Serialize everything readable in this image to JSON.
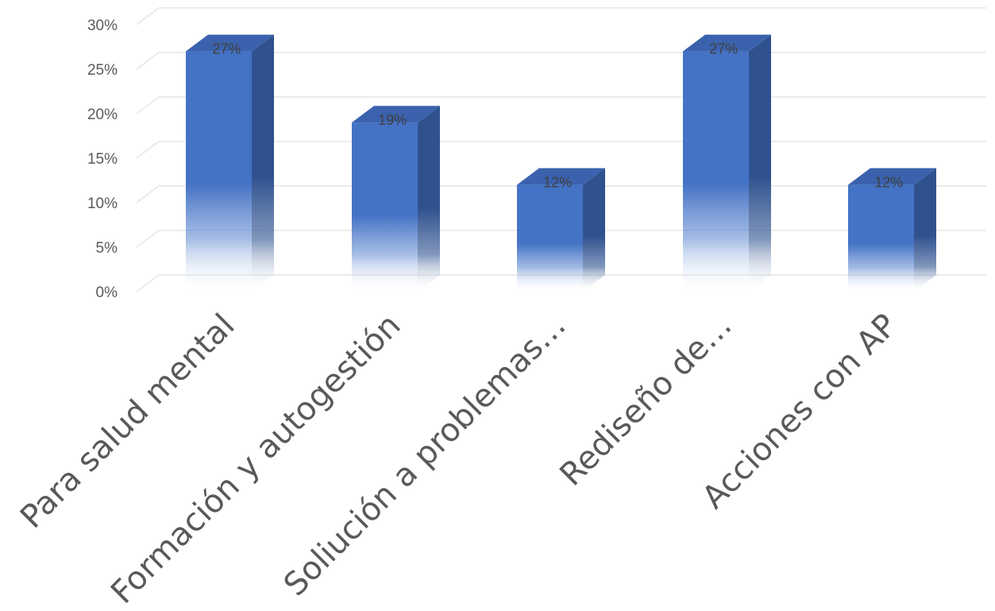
{
  "chart_data": {
    "type": "bar",
    "style": "3d-column",
    "categories": [
      "Para salud mental",
      "Formación y autogestión",
      "Soliución a problemas…",
      "Rediseño de…",
      "Acciones con AP"
    ],
    "values": [
      27,
      19,
      12,
      27,
      12
    ],
    "data_labels": [
      "27%",
      "19%",
      "12%",
      "27%",
      "12%"
    ],
    "y_ticks": [
      "0%",
      "5%",
      "10%",
      "15%",
      "20%",
      "25%",
      "30%"
    ],
    "ylim": [
      0,
      30
    ],
    "y_unit": "%",
    "grid": true,
    "legend": false,
    "title": "",
    "xlabel": "",
    "ylabel": "",
    "colors": {
      "bar_front": "#4472c4",
      "bar_side": "#2f528f",
      "bar_top": "#3a62ad",
      "gridline": "#e6e6e6",
      "tick_text": "#595959",
      "category_text": "#595959",
      "data_label_text": "#404040"
    }
  }
}
